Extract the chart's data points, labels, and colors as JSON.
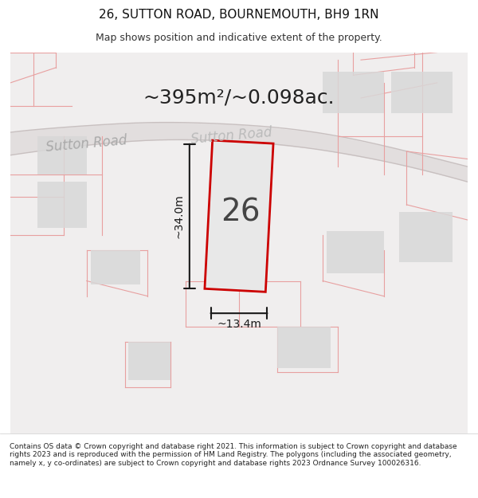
{
  "title": "26, SUTTON ROAD, BOURNEMOUTH, BH9 1RN",
  "subtitle": "Map shows position and indicative extent of the property.",
  "area_label": "~395m²/~0.098ac.",
  "number_label": "26",
  "width_label": "~13.4m",
  "height_label": "~34.0m",
  "road_label": "Sutton Road",
  "road_label2": "Sutton Road",
  "footer": "Contains OS data © Crown copyright and database right 2021. This information is subject to Crown copyright and database rights 2023 and is reproduced with the permission of HM Land Registry. The polygons (including the associated geometry, namely x, y co-ordinates) are subject to Crown copyright and database rights 2023 Ordnance Survey 100026316.",
  "bg_color": "#f5f5f5",
  "map_bg": "#f0eeee",
  "highlight_color": "#e8e8e8",
  "road_color": "#e8e0e0",
  "plot_border_color": "#cc0000",
  "plot_fill": "#e8e8e8",
  "dim_color": "#1a1a1a",
  "pink_line_color": "#e8a0a0",
  "title_fontsize": 11,
  "subtitle_fontsize": 9,
  "area_fontsize": 18,
  "number_fontsize": 28,
  "dim_fontsize": 10,
  "road_fontsize": 12,
  "footer_fontsize": 6.5
}
